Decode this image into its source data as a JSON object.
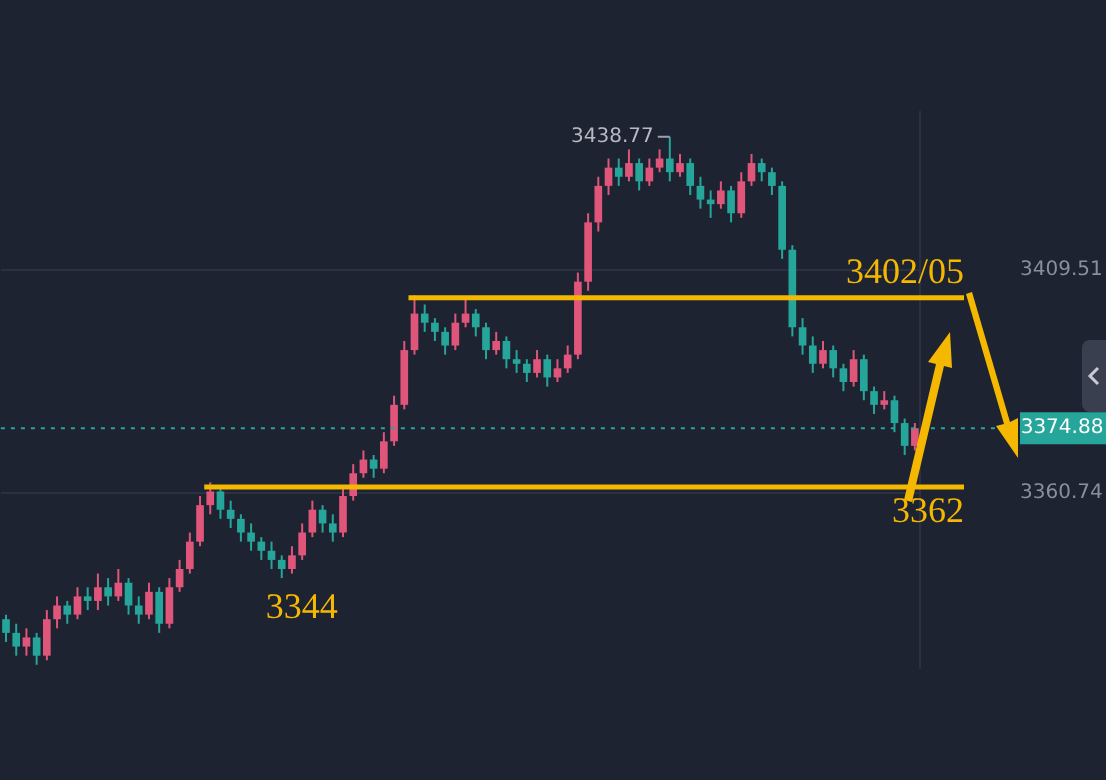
{
  "chart_data": {
    "type": "candlestick",
    "categories": [
      null,
      null,
      null,
      null,
      null,
      null,
      null,
      null,
      null,
      null,
      null,
      null,
      null,
      null,
      null,
      null,
      null,
      null,
      null,
      null,
      null,
      null,
      null,
      null,
      null,
      null,
      null,
      null,
      null,
      null,
      null,
      null,
      null,
      null,
      null,
      null,
      null,
      null,
      null,
      null,
      null,
      null,
      null,
      null,
      null,
      null,
      null,
      null,
      null,
      null,
      null,
      null,
      null,
      null,
      null,
      null,
      null,
      null,
      null,
      null,
      null,
      null,
      null,
      null,
      null,
      null,
      null,
      null,
      null,
      null,
      null,
      null,
      null,
      null,
      null,
      null,
      null,
      null,
      null,
      null,
      null,
      null,
      null,
      null,
      null,
      null,
      null,
      null,
      null,
      null
    ],
    "ohlc": [
      [
        3333,
        3334,
        3328,
        3330
      ],
      [
        3330,
        3332,
        3325,
        3327
      ],
      [
        3327,
        3331,
        3325,
        3329
      ],
      [
        3329,
        3330,
        3323,
        3325
      ],
      [
        3325,
        3335,
        3324,
        3333
      ],
      [
        3333,
        3338,
        3331,
        3336
      ],
      [
        3336,
        3337,
        3332,
        3334
      ],
      [
        3334,
        3340,
        3333,
        3338
      ],
      [
        3338,
        3340,
        3335,
        3337
      ],
      [
        3337,
        3343,
        3335,
        3340
      ],
      [
        3340,
        3342,
        3336,
        3338
      ],
      [
        3338,
        3344,
        3337,
        3341
      ],
      [
        3341,
        3342,
        3334,
        3336
      ],
      [
        3336,
        3338,
        3332,
        3334
      ],
      [
        3334,
        3341,
        3333,
        3339
      ],
      [
        3339,
        3340,
        3330,
        3332
      ],
      [
        3332,
        3342,
        3331,
        3340
      ],
      [
        3340,
        3346,
        3339,
        3344
      ],
      [
        3344,
        3352,
        3343,
        3350
      ],
      [
        3350,
        3360,
        3349,
        3358
      ],
      [
        3358,
        3363,
        3356,
        3361
      ],
      [
        3361,
        3362,
        3355,
        3357
      ],
      [
        3357,
        3359,
        3353,
        3355
      ],
      [
        3355,
        3356,
        3350,
        3352
      ],
      [
        3352,
        3354,
        3348,
        3350
      ],
      [
        3350,
        3351,
        3346,
        3348
      ],
      [
        3348,
        3350,
        3344,
        3346
      ],
      [
        3346,
        3347,
        3342,
        3344
      ],
      [
        3344,
        3349,
        3343,
        3347
      ],
      [
        3347,
        3354,
        3346,
        3352
      ],
      [
        3352,
        3359,
        3351,
        3357
      ],
      [
        3357,
        3358,
        3352,
        3354
      ],
      [
        3354,
        3356,
        3350,
        3352
      ],
      [
        3352,
        3362,
        3351,
        3360
      ],
      [
        3360,
        3367,
        3359,
        3365
      ],
      [
        3365,
        3370,
        3364,
        3368
      ],
      [
        3368,
        3369,
        3364,
        3366
      ],
      [
        3366,
        3374,
        3365,
        3372
      ],
      [
        3372,
        3382,
        3371,
        3380
      ],
      [
        3380,
        3394,
        3379,
        3392
      ],
      [
        3392,
        3404,
        3391,
        3400
      ],
      [
        3400,
        3402,
        3396,
        3398
      ],
      [
        3398,
        3399,
        3394,
        3396
      ],
      [
        3396,
        3397,
        3391,
        3393
      ],
      [
        3393,
        3400,
        3392,
        3398
      ],
      [
        3398,
        3403,
        3397,
        3400
      ],
      [
        3400,
        3401,
        3395,
        3397
      ],
      [
        3397,
        3398,
        3390,
        3392
      ],
      [
        3392,
        3396,
        3391,
        3394
      ],
      [
        3394,
        3395,
        3388,
        3390
      ],
      [
        3390,
        3392,
        3387,
        3389
      ],
      [
        3389,
        3390,
        3385,
        3387
      ],
      [
        3387,
        3392,
        3386,
        3390
      ],
      [
        3390,
        3391,
        3384,
        3386
      ],
      [
        3386,
        3390,
        3385,
        3388
      ],
      [
        3388,
        3393,
        3387,
        3391
      ],
      [
        3391,
        3409,
        3390,
        3407
      ],
      [
        3407,
        3422,
        3405,
        3420
      ],
      [
        3420,
        3430,
        3418,
        3428
      ],
      [
        3428,
        3434,
        3426,
        3432
      ],
      [
        3432,
        3434,
        3428,
        3430
      ],
      [
        3430,
        3436,
        3429,
        3433
      ],
      [
        3433,
        3434,
        3427,
        3429
      ],
      [
        3429,
        3434,
        3428,
        3432
      ],
      [
        3432,
        3436,
        3431,
        3434
      ],
      [
        3434,
        3438.77,
        3429,
        3431
      ],
      [
        3431,
        3435,
        3430,
        3433
      ],
      [
        3433,
        3434,
        3426,
        3428
      ],
      [
        3428,
        3430,
        3423,
        3425
      ],
      [
        3425,
        3427,
        3421,
        3424
      ],
      [
        3424,
        3429,
        3423,
        3427
      ],
      [
        3427,
        3428,
        3420,
        3422
      ],
      [
        3422,
        3431,
        3421,
        3429
      ],
      [
        3429,
        3435,
        3428,
        3433
      ],
      [
        3433,
        3434,
        3429,
        3431
      ],
      [
        3431,
        3432,
        3426,
        3428
      ],
      [
        3428,
        3429,
        3412,
        3414
      ],
      [
        3414,
        3415,
        3395,
        3397
      ],
      [
        3397,
        3399,
        3391,
        3393
      ],
      [
        3393,
        3395,
        3387,
        3389
      ],
      [
        3389,
        3394,
        3388,
        3392
      ],
      [
        3392,
        3393,
        3386,
        3388
      ],
      [
        3388,
        3389,
        3383,
        3385
      ],
      [
        3385,
        3392,
        3384,
        3390
      ],
      [
        3390,
        3391,
        3381,
        3383
      ],
      [
        3383,
        3384,
        3378,
        3380
      ],
      [
        3380,
        3383,
        3379,
        3381
      ],
      [
        3381,
        3382,
        3374,
        3376
      ],
      [
        3376,
        3377,
        3369,
        3371
      ],
      [
        3371,
        3376,
        3370,
        3374.88
      ]
    ],
    "colors": [
      "#26a69a",
      "#26a69a",
      "#e0557a",
      "#26a69a",
      "#e0557a",
      "#e0557a",
      "#26a69a",
      "#e0557a",
      "#26a69a",
      "#e0557a",
      "#26a69a",
      "#e0557a",
      "#26a69a",
      "#26a69a",
      "#e0557a",
      "#26a69a",
      "#e0557a",
      "#e0557a",
      "#e0557a",
      "#e0557a",
      "#e0557a",
      "#26a69a",
      "#26a69a",
      "#26a69a",
      "#26a69a",
      "#26a69a",
      "#26a69a",
      "#26a69a",
      "#e0557a",
      "#e0557a",
      "#e0557a",
      "#26a69a",
      "#26a69a",
      "#e0557a",
      "#e0557a",
      "#e0557a",
      "#26a69a",
      "#e0557a",
      "#e0557a",
      "#e0557a",
      "#e0557a",
      "#26a69a",
      "#26a69a",
      "#26a69a",
      "#e0557a",
      "#e0557a",
      "#26a69a",
      "#26a69a",
      "#e0557a",
      "#26a69a",
      "#26a69a",
      "#26a69a",
      "#e0557a",
      "#26a69a",
      "#e0557a",
      "#e0557a",
      "#e0557a",
      "#e0557a",
      "#e0557a",
      "#e0557a",
      "#26a69a",
      "#e0557a",
      "#26a69a",
      "#e0557a",
      "#e0557a",
      "#26a69a",
      "#e0557a",
      "#26a69a",
      "#26a69a",
      "#26a69a",
      "#e0557a",
      "#26a69a",
      "#e0557a",
      "#e0557a",
      "#26a69a",
      "#26a69a",
      "#26a69a",
      "#26a69a",
      "#26a69a",
      "#26a69a",
      "#e0557a",
      "#26a69a",
      "#26a69a",
      "#e0557a",
      "#26a69a",
      "#26a69a",
      "#e0557a",
      "#26a69a",
      "#26a69a",
      "#e0557a"
    ],
    "ylim": [
      3322.3,
      3444.2
    ],
    "yticks": [
      3360.74,
      3409.51
    ],
    "grid": "y",
    "ref_lines": [
      {
        "axis": "y",
        "value": 3403.5,
        "color": "#f5b800"
      },
      {
        "axis": "y",
        "value": 3362,
        "label": "3362",
        "color": "#f5b800"
      },
      {
        "axis": "y",
        "value": 3374.88,
        "label": "3374.88",
        "color": "#26a69a",
        "line_style": "dotted"
      }
    ],
    "annotations": [
      "3438.77",
      "3344",
      "3402/05"
    ]
  }
}
